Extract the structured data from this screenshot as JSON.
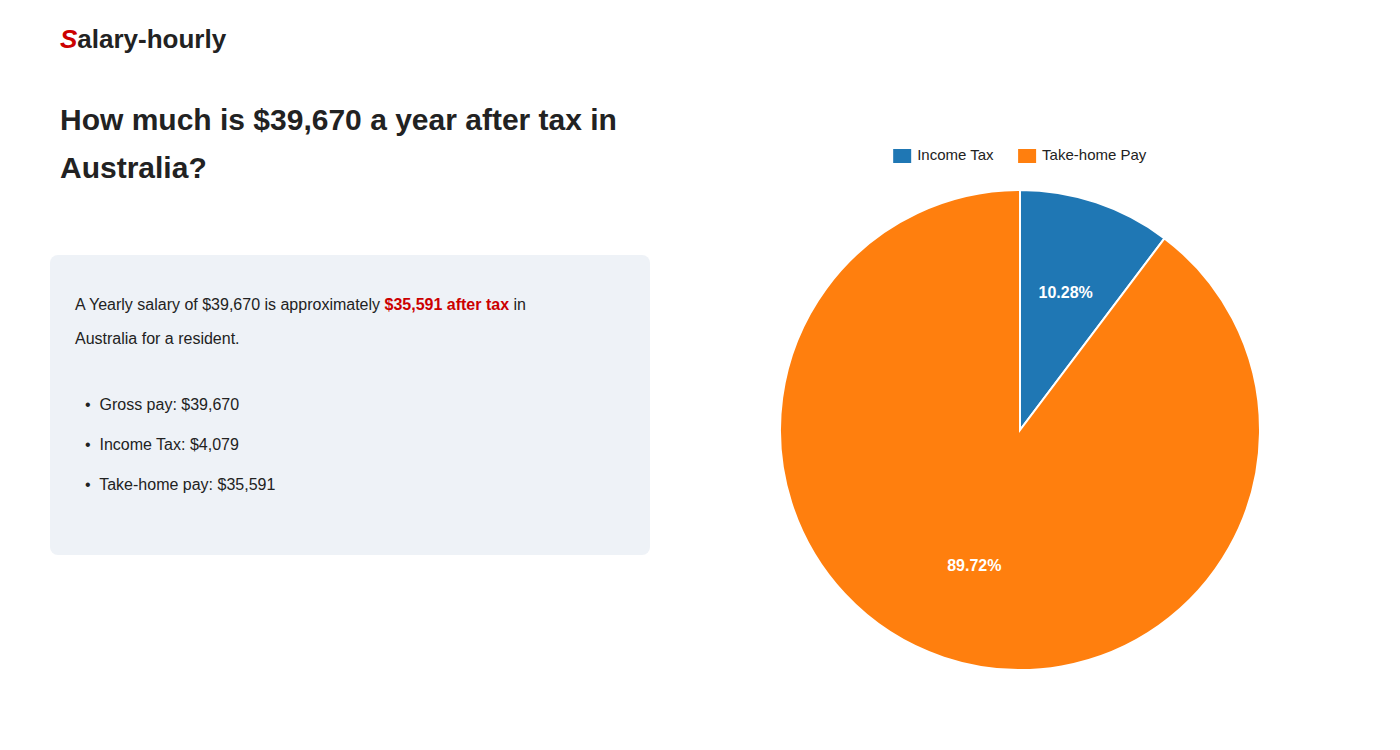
{
  "chart_data": {
    "type": "pie",
    "title": [
      "How much is $39,670 a year after tax in",
      "Australia?"
    ],
    "annotations": [
      {
        "text": "S",
        "color": "#cc0000"
      },
      {
        "text": "alary-hourly"
      },
      {
        "text": "A Yearly salary of $39,670 is approximately "
      },
      {
        "text": "$35,591 after tax",
        "color": "#cc0000"
      },
      {
        "text": " in"
      },
      {
        "text": "Australia for a resident."
      },
      {
        "text": "•  Gross pay: $39,670"
      },
      {
        "text": "•  Income Tax: $4,079"
      },
      {
        "text": "•  Take-home pay: $35,591"
      }
    ],
    "categories": [
      "Income Tax",
      "Take-home Pay"
    ],
    "values": [
      10.28,
      89.72
    ],
    "value_labels": [
      "10.28%",
      "89.72%"
    ],
    "data_labels": true,
    "legend": "top"
  }
}
